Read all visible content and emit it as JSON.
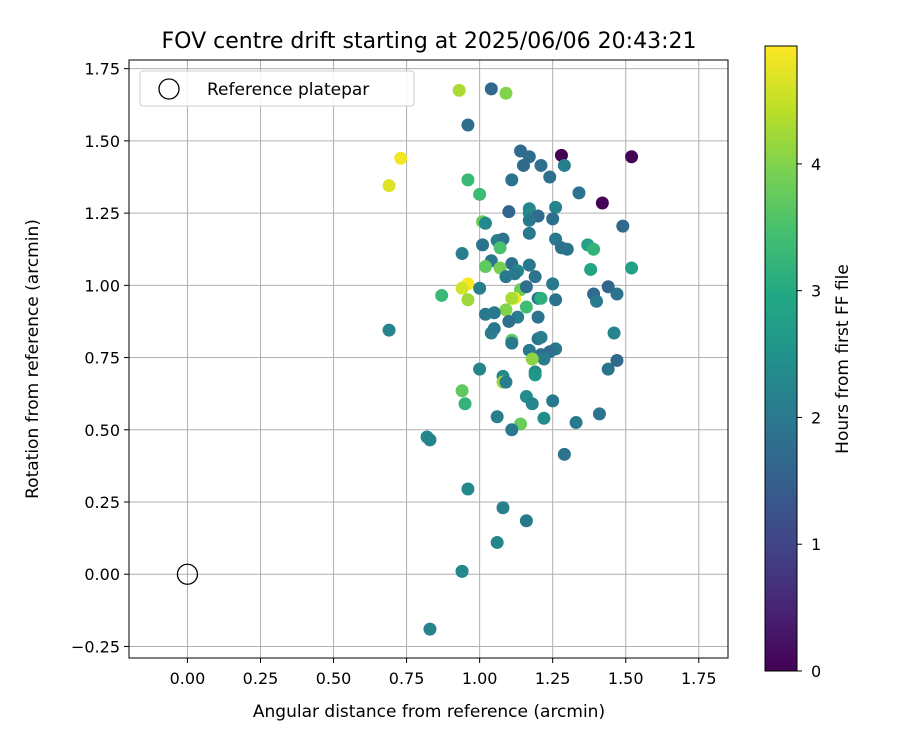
{
  "chart_data": {
    "type": "scatter",
    "title": "FOV centre drift starting at 2025/06/06 20:43:21",
    "xlabel": "Angular distance from reference (arcmin)",
    "ylabel": "Rotation from reference (arcmin)",
    "xlim": [
      -0.2,
      1.85
    ],
    "ylim": [
      -0.29,
      1.78
    ],
    "xticks": [
      0.0,
      0.25,
      0.5,
      0.75,
      1.0,
      1.25,
      1.5,
      1.75
    ],
    "yticks": [
      -0.25,
      0.0,
      0.25,
      0.5,
      0.75,
      1.0,
      1.25,
      1.5,
      1.75
    ],
    "grid": true,
    "legend": {
      "location": "upper left",
      "entries": [
        "Reference platepar"
      ]
    },
    "reference_point": {
      "x": 0.0,
      "y": 0.0,
      "marker": "open-circle"
    },
    "colorbar": {
      "label": "Hours from first FF file",
      "colormap": "viridis",
      "range": [
        0,
        4.93
      ],
      "ticks": [
        0,
        1,
        2,
        3,
        4
      ]
    },
    "points": [
      {
        "x": 1.28,
        "y": 1.45,
        "h": 0.0
      },
      {
        "x": 1.52,
        "y": 1.445,
        "h": 0.05
      },
      {
        "x": 1.42,
        "y": 1.285,
        "h": 0.05
      },
      {
        "x": 0.93,
        "y": 1.675,
        "h": 4.3
      },
      {
        "x": 1.04,
        "y": 1.68,
        "h": 1.65
      },
      {
        "x": 1.09,
        "y": 1.665,
        "h": 4.0
      },
      {
        "x": 0.96,
        "y": 1.555,
        "h": 1.8
      },
      {
        "x": 1.14,
        "y": 1.465,
        "h": 1.7
      },
      {
        "x": 1.17,
        "y": 1.445,
        "h": 1.75
      },
      {
        "x": 1.29,
        "y": 1.415,
        "h": 2.1
      },
      {
        "x": 1.21,
        "y": 1.415,
        "h": 1.8
      },
      {
        "x": 1.15,
        "y": 1.415,
        "h": 1.7
      },
      {
        "x": 0.73,
        "y": 1.44,
        "h": 4.85
      },
      {
        "x": 1.24,
        "y": 1.375,
        "h": 1.8
      },
      {
        "x": 0.96,
        "y": 1.365,
        "h": 3.3
      },
      {
        "x": 1.11,
        "y": 1.365,
        "h": 1.9
      },
      {
        "x": 0.69,
        "y": 1.345,
        "h": 4.7
      },
      {
        "x": 1.34,
        "y": 1.32,
        "h": 1.85
      },
      {
        "x": 1.0,
        "y": 1.315,
        "h": 3.35
      },
      {
        "x": 1.17,
        "y": 1.265,
        "h": 2.2
      },
      {
        "x": 1.26,
        "y": 1.27,
        "h": 2.2
      },
      {
        "x": 1.17,
        "y": 1.25,
        "h": 2.3
      },
      {
        "x": 1.1,
        "y": 1.255,
        "h": 1.6
      },
      {
        "x": 1.2,
        "y": 1.24,
        "h": 1.7
      },
      {
        "x": 1.25,
        "y": 1.23,
        "h": 1.8
      },
      {
        "x": 1.17,
        "y": 1.225,
        "h": 2.0
      },
      {
        "x": 1.01,
        "y": 1.22,
        "h": 3.8
      },
      {
        "x": 1.02,
        "y": 1.215,
        "h": 2.3
      },
      {
        "x": 1.49,
        "y": 1.205,
        "h": 1.7
      },
      {
        "x": 1.17,
        "y": 1.18,
        "h": 2.0
      },
      {
        "x": 1.06,
        "y": 1.155,
        "h": 2.1
      },
      {
        "x": 1.08,
        "y": 1.16,
        "h": 1.9
      },
      {
        "x": 1.26,
        "y": 1.16,
        "h": 2.0
      },
      {
        "x": 1.01,
        "y": 1.14,
        "h": 1.9
      },
      {
        "x": 1.28,
        "y": 1.13,
        "h": 1.8
      },
      {
        "x": 1.3,
        "y": 1.125,
        "h": 1.9
      },
      {
        "x": 1.07,
        "y": 1.13,
        "h": 3.5
      },
      {
        "x": 1.37,
        "y": 1.14,
        "h": 2.8
      },
      {
        "x": 1.39,
        "y": 1.125,
        "h": 3.2
      },
      {
        "x": 0.94,
        "y": 1.11,
        "h": 2.1
      },
      {
        "x": 1.04,
        "y": 1.085,
        "h": 2.0
      },
      {
        "x": 1.11,
        "y": 1.075,
        "h": 1.8
      },
      {
        "x": 1.17,
        "y": 1.07,
        "h": 2.0
      },
      {
        "x": 1.02,
        "y": 1.065,
        "h": 3.7
      },
      {
        "x": 1.07,
        "y": 1.06,
        "h": 3.9
      },
      {
        "x": 1.13,
        "y": 1.05,
        "h": 2.3
      },
      {
        "x": 1.12,
        "y": 1.04,
        "h": 2.0
      },
      {
        "x": 1.09,
        "y": 1.03,
        "h": 2.0
      },
      {
        "x": 1.19,
        "y": 1.03,
        "h": 1.9
      },
      {
        "x": 1.38,
        "y": 1.055,
        "h": 2.9
      },
      {
        "x": 1.52,
        "y": 1.06,
        "h": 2.8
      },
      {
        "x": 0.96,
        "y": 1.005,
        "h": 4.9
      },
      {
        "x": 0.94,
        "y": 0.99,
        "h": 4.6
      },
      {
        "x": 1.0,
        "y": 0.99,
        "h": 2.1
      },
      {
        "x": 1.14,
        "y": 0.985,
        "h": 3.8
      },
      {
        "x": 1.16,
        "y": 0.995,
        "h": 1.8
      },
      {
        "x": 1.25,
        "y": 1.005,
        "h": 2.0
      },
      {
        "x": 1.39,
        "y": 0.97,
        "h": 1.7
      },
      {
        "x": 1.44,
        "y": 0.995,
        "h": 1.6
      },
      {
        "x": 1.47,
        "y": 0.97,
        "h": 1.9
      },
      {
        "x": 0.87,
        "y": 0.965,
        "h": 3.3
      },
      {
        "x": 1.12,
        "y": 0.955,
        "h": 4.85
      },
      {
        "x": 1.11,
        "y": 0.955,
        "h": 4.3
      },
      {
        "x": 1.2,
        "y": 0.955,
        "h": 2.0
      },
      {
        "x": 1.21,
        "y": 0.955,
        "h": 3.1
      },
      {
        "x": 1.26,
        "y": 0.95,
        "h": 1.9
      },
      {
        "x": 1.4,
        "y": 0.945,
        "h": 2.0
      },
      {
        "x": 0.96,
        "y": 0.95,
        "h": 4.2
      },
      {
        "x": 1.16,
        "y": 0.925,
        "h": 3.4
      },
      {
        "x": 1.09,
        "y": 0.915,
        "h": 4.0
      },
      {
        "x": 1.05,
        "y": 0.905,
        "h": 2.0
      },
      {
        "x": 1.02,
        "y": 0.9,
        "h": 2.0
      },
      {
        "x": 1.13,
        "y": 0.89,
        "h": 2.1
      },
      {
        "x": 1.2,
        "y": 0.89,
        "h": 1.9
      },
      {
        "x": 1.1,
        "y": 0.875,
        "h": 1.8
      },
      {
        "x": 0.69,
        "y": 0.845,
        "h": 2.2
      },
      {
        "x": 1.04,
        "y": 0.835,
        "h": 2.1
      },
      {
        "x": 1.05,
        "y": 0.85,
        "h": 2.0
      },
      {
        "x": 1.46,
        "y": 0.835,
        "h": 2.2
      },
      {
        "x": 1.11,
        "y": 0.81,
        "h": 3.7
      },
      {
        "x": 1.11,
        "y": 0.8,
        "h": 2.0
      },
      {
        "x": 1.2,
        "y": 0.815,
        "h": 1.9
      },
      {
        "x": 1.21,
        "y": 0.82,
        "h": 2.1
      },
      {
        "x": 1.17,
        "y": 0.775,
        "h": 2.0
      },
      {
        "x": 1.26,
        "y": 0.78,
        "h": 2.0
      },
      {
        "x": 1.24,
        "y": 0.77,
        "h": 1.8
      },
      {
        "x": 1.21,
        "y": 0.76,
        "h": 1.8
      },
      {
        "x": 1.22,
        "y": 0.745,
        "h": 2.1
      },
      {
        "x": 1.47,
        "y": 0.74,
        "h": 1.7
      },
      {
        "x": 1.18,
        "y": 0.745,
        "h": 4.1
      },
      {
        "x": 1.44,
        "y": 0.71,
        "h": 1.9
      },
      {
        "x": 1.0,
        "y": 0.71,
        "h": 2.2
      },
      {
        "x": 1.08,
        "y": 0.685,
        "h": 2.3
      },
      {
        "x": 1.19,
        "y": 0.7,
        "h": 2.3
      },
      {
        "x": 1.19,
        "y": 0.69,
        "h": 2.6
      },
      {
        "x": 1.08,
        "y": 0.665,
        "h": 4.2
      },
      {
        "x": 1.09,
        "y": 0.665,
        "h": 2.1
      },
      {
        "x": 0.94,
        "y": 0.635,
        "h": 3.7
      },
      {
        "x": 1.16,
        "y": 0.615,
        "h": 2.4
      },
      {
        "x": 1.25,
        "y": 0.6,
        "h": 2.0
      },
      {
        "x": 0.95,
        "y": 0.59,
        "h": 3.2
      },
      {
        "x": 1.18,
        "y": 0.59,
        "h": 2.2
      },
      {
        "x": 1.06,
        "y": 0.545,
        "h": 2.1
      },
      {
        "x": 1.22,
        "y": 0.54,
        "h": 2.4
      },
      {
        "x": 1.41,
        "y": 0.555,
        "h": 1.9
      },
      {
        "x": 1.14,
        "y": 0.52,
        "h": 3.8
      },
      {
        "x": 1.33,
        "y": 0.525,
        "h": 2.0
      },
      {
        "x": 1.11,
        "y": 0.5,
        "h": 2.0
      },
      {
        "x": 0.82,
        "y": 0.475,
        "h": 2.3
      },
      {
        "x": 0.83,
        "y": 0.465,
        "h": 2.2
      },
      {
        "x": 1.29,
        "y": 0.415,
        "h": 1.9
      },
      {
        "x": 0.96,
        "y": 0.295,
        "h": 2.3
      },
      {
        "x": 1.08,
        "y": 0.23,
        "h": 2.1
      },
      {
        "x": 1.16,
        "y": 0.185,
        "h": 2.0
      },
      {
        "x": 1.06,
        "y": 0.11,
        "h": 2.2
      },
      {
        "x": 0.94,
        "y": 0.01,
        "h": 2.2
      },
      {
        "x": 0.94,
        "y": 0.01,
        "h": 2.3
      },
      {
        "x": 0.83,
        "y": -0.19,
        "h": 2.2
      }
    ]
  }
}
